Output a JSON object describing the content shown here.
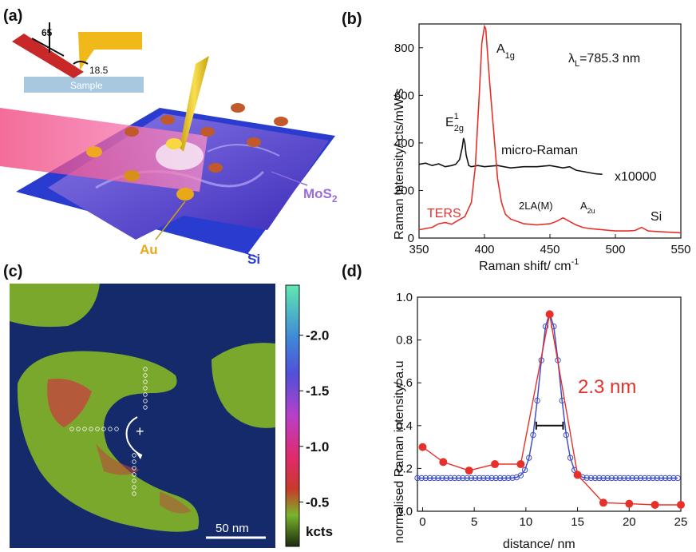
{
  "panel_labels": {
    "a": "(a)",
    "b": "(b)",
    "c": "(c)",
    "d": "(d)"
  },
  "panel_a": {
    "angle_top": "65",
    "angle_tip": "18.5",
    "sample_label": "Sample",
    "label_mos2": "MoS",
    "label_mos2_sub": "2",
    "label_au": "Au",
    "label_si": "Si",
    "colors": {
      "substrate": "#2a3ccf",
      "mos2": "#6a58d8",
      "laser": "#f0407a",
      "gold": "#e8c21a",
      "particle": "#c05a2a"
    }
  },
  "panel_c": {
    "scale_bar": "50 nm",
    "colorbar_unit": "kcts",
    "colorbar_ticks": [
      "2.0",
      "1.5",
      "1.0",
      "0.5"
    ],
    "colorbar_values": [
      2.0,
      1.5,
      1.0,
      0.5
    ],
    "colorbar_range": [
      0.1,
      2.45
    ],
    "plus_marker": "+",
    "colors": {
      "background": "#142a6a",
      "flake": "#7aa82c",
      "hot": "#d04040"
    }
  },
  "chart_data": [
    {
      "type": "line",
      "panel": "b",
      "xlabel": "Raman shift/ cm",
      "xlabel_sup": "-1",
      "ylabel": "Raman intensity/ cts/mW/s",
      "xlim": [
        350,
        550
      ],
      "ylim": [
        0,
        900
      ],
      "xticks": [
        350,
        400,
        450,
        500,
        550
      ],
      "yticks": [
        0,
        200,
        400,
        600,
        800
      ],
      "annotations": {
        "wavelength": "λ",
        "wavelength_sub": "L",
        "wavelength_value": "=785.3 nm",
        "a1g": "A",
        "a1g_sub": "1g",
        "e2g": "E",
        "e2g_sup": "1",
        "e2g_sub": "2g",
        "micro_raman": "micro-Raman",
        "multiplier": "x10000",
        "ters": "TERS",
        "la": "2LA(M)",
        "a2u": "A",
        "a2u_sub": "2u",
        "si": "Si"
      },
      "series": [
        {
          "name": "micro-Raman",
          "color": "#111111",
          "x": [
            350,
            355,
            360,
            365,
            370,
            375,
            378,
            381,
            383,
            384,
            385,
            386,
            388,
            390,
            395,
            400,
            410,
            420,
            430,
            440,
            450,
            455,
            460,
            465,
            470,
            475,
            480,
            485,
            490
          ],
          "y": [
            310,
            315,
            305,
            312,
            300,
            305,
            310,
            330,
            380,
            420,
            400,
            350,
            305,
            300,
            305,
            300,
            305,
            295,
            300,
            300,
            305,
            300,
            295,
            300,
            285,
            280,
            275,
            270,
            268
          ]
        },
        {
          "name": "TERS",
          "color": "#e8302a",
          "x": [
            350,
            360,
            365,
            370,
            375,
            380,
            385,
            390,
            393,
            396,
            398,
            400,
            401,
            402,
            404,
            407,
            410,
            413,
            416,
            420,
            430,
            440,
            450,
            455,
            460,
            465,
            470,
            475,
            480,
            490,
            500,
            510,
            515,
            520,
            525,
            530,
            540,
            550
          ],
          "y": [
            35,
            45,
            60,
            65,
            58,
            75,
            90,
            150,
            300,
            600,
            820,
            890,
            880,
            800,
            650,
            450,
            250,
            150,
            100,
            80,
            60,
            55,
            60,
            70,
            85,
            70,
            55,
            45,
            40,
            35,
            30,
            30,
            32,
            45,
            30,
            28,
            25,
            22
          ]
        }
      ]
    },
    {
      "type": "scatter",
      "panel": "d",
      "xlabel": "distance/ nm",
      "ylabel": "normalised Raman intensity/ a.u",
      "xlim": [
        -0.5,
        25
      ],
      "ylim": [
        0,
        1.0
      ],
      "xticks": [
        0,
        5,
        10,
        15,
        20,
        25
      ],
      "yticks": [
        0.0,
        0.2,
        0.4,
        0.6,
        0.8,
        1.0
      ],
      "annotation": "2.3 nm",
      "fwhm_marker": [
        11.0,
        13.6,
        0.4
      ],
      "series": [
        {
          "name": "measured",
          "color": "#e8302a",
          "x": [
            0,
            2,
            4.5,
            7,
            9.5,
            12.3,
            15,
            17.5,
            20,
            22.5,
            25
          ],
          "y": [
            0.3,
            0.23,
            0.19,
            0.22,
            0.22,
            0.92,
            0.17,
            0.04,
            0.035,
            0.03,
            0.03
          ]
        },
        {
          "name": "fit",
          "color": "#4050c8",
          "gaussian": {
            "center": 12.3,
            "fwhm": 2.3,
            "amplitude": 0.77,
            "baseline": 0.155
          },
          "x_start": -0.5,
          "x_end": 25,
          "x_step": 0.4
        }
      ]
    }
  ]
}
